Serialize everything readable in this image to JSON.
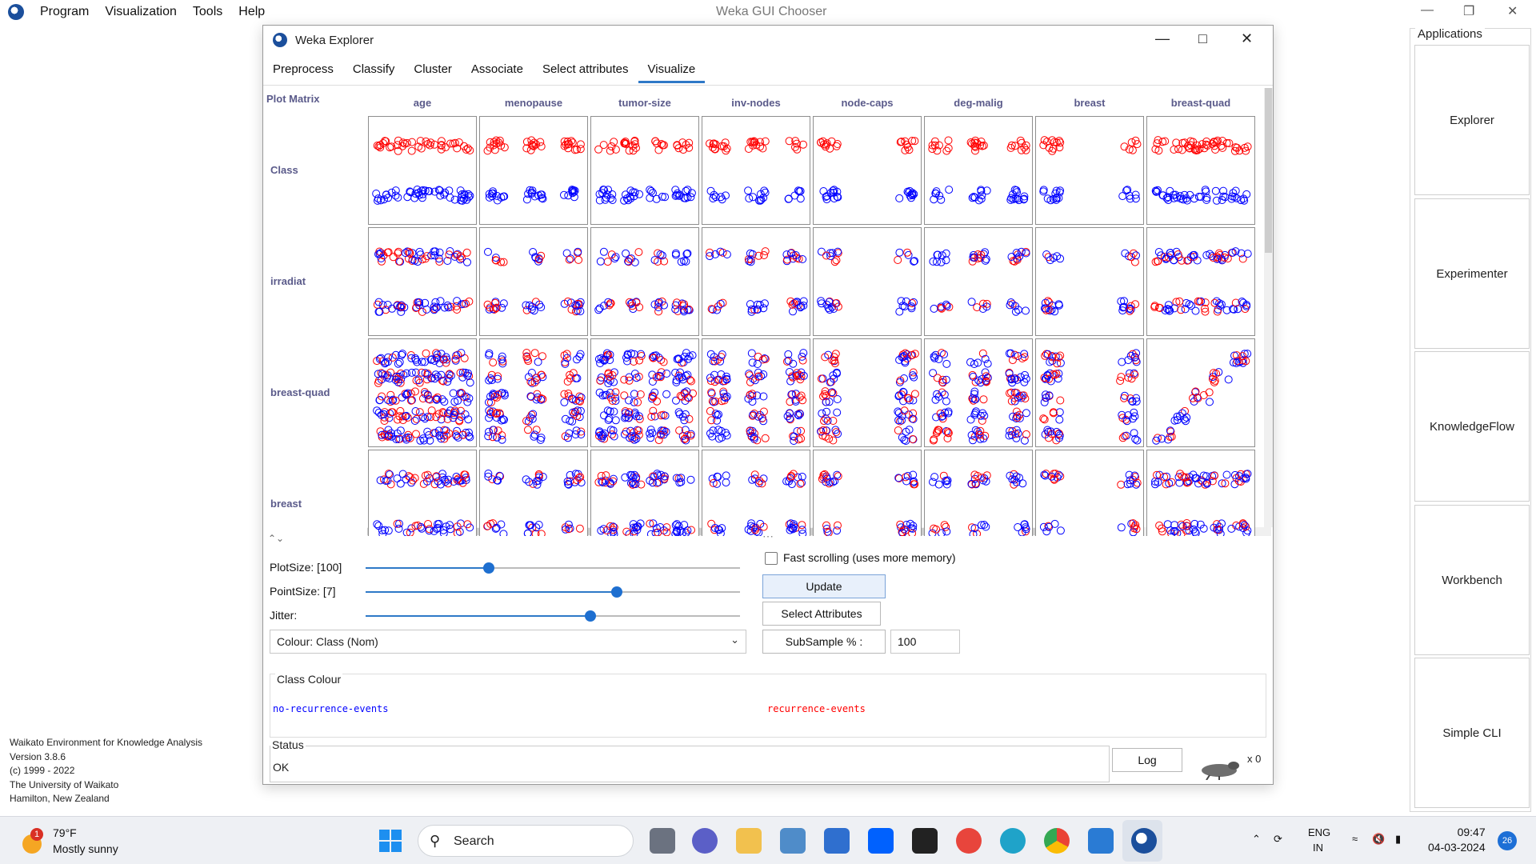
{
  "chooser": {
    "menu": [
      "Program",
      "Visualization",
      "Tools",
      "Help"
    ],
    "title": "Weka GUI Chooser",
    "applications_label": "Applications",
    "apps": [
      "Explorer",
      "Experimenter",
      "KnowledgeFlow",
      "Workbench",
      "Simple CLI"
    ],
    "about": [
      "Waikato Environment for Knowledge Analysis",
      "Version 3.8.6",
      "(c) 1999 - 2022",
      "The University of Waikato",
      "Hamilton, New Zealand"
    ]
  },
  "explorer": {
    "title": "Weka Explorer",
    "tabs": [
      "Preprocess",
      "Classify",
      "Cluster",
      "Associate",
      "Select attributes",
      "Visualize"
    ],
    "active_tab": "Visualize",
    "matrix": {
      "title": "Plot Matrix",
      "columns": [
        "age",
        "menopause",
        "tumor-size",
        "inv-nodes",
        "node-caps",
        "deg-malig",
        "breast",
        "breast-quad"
      ],
      "rows": [
        "Class",
        "irradiat",
        "breast-quad",
        "breast"
      ]
    },
    "controls": {
      "plot_size_label": "PlotSize: [100]",
      "plot_size_fraction": 0.33,
      "point_size_label": "PointSize: [7]",
      "point_size_fraction": 0.67,
      "jitter_label": "Jitter:",
      "jitter_fraction": 0.6,
      "colour_select": "Colour: Class  (Nom)",
      "fast_scrolling_label": "Fast scrolling (uses more memory)",
      "fast_scrolling_checked": false,
      "update_label": "Update",
      "select_attributes_label": "Select Attributes",
      "subsample_label": "SubSample % :",
      "subsample_value": "100"
    },
    "class_colour": {
      "title": "Class Colour",
      "classes": [
        {
          "name": "no-recurrence-events",
          "color": "#0000ff"
        },
        {
          "name": "recurrence-events",
          "color": "#ff0000"
        }
      ]
    },
    "status": {
      "label": "Status",
      "value": "OK"
    },
    "log_label": "Log",
    "task_count": "x 0"
  },
  "taskbar": {
    "weather_temp": "79°F",
    "weather_desc": "Mostly sunny",
    "weather_badge": "1",
    "search_label": "Search",
    "language": "ENG",
    "region": "IN",
    "time": "09:47",
    "date": "04-03-2024",
    "notification_count": "26"
  }
}
